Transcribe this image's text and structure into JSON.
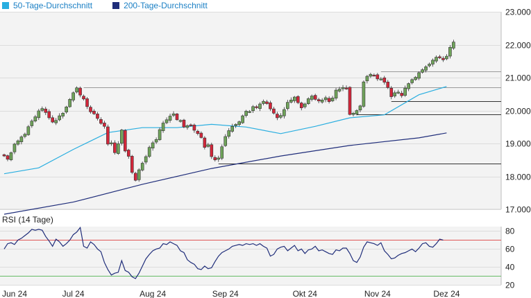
{
  "chart_data": [
    {
      "type": "candlestick",
      "title": "",
      "legend": {
        "placement": "top-left",
        "entries": [
          {
            "name": "50-Tage-Durchschnitt",
            "color": "#29aee0"
          },
          {
            "name": "200-Tage-Durchschnitt",
            "color": "#1f2d7a"
          }
        ]
      },
      "y_axis": {
        "side": "right",
        "ylim": [
          17000,
          23000
        ],
        "ticks": [
          17000,
          18000,
          19000,
          20000,
          21000,
          22000,
          23000
        ],
        "tick_labels": [
          "17.000",
          "18.000",
          "19.000",
          "20.000",
          "21.000",
          "22.000",
          "23.000"
        ]
      },
      "x_axis": {
        "labels": [
          "Jun 24",
          "Jul 24",
          "Aug 24",
          "Sep 24",
          "Okt 24",
          "Nov 24",
          "Dez 24"
        ],
        "label_index": [
          0,
          20,
          43,
          64,
          87,
          108,
          128
        ]
      },
      "grid": "horizontal",
      "colors": {
        "up": "#6fa35a",
        "down": "#d3263a",
        "grid": "#dcdcdc",
        "plot_bg": "#f3f3f3"
      },
      "close": [
        18620,
        18520,
        18720,
        18980,
        19080,
        19200,
        19280,
        19510,
        19680,
        19810,
        19990,
        20060,
        19940,
        19780,
        19650,
        19700,
        19840,
        19920,
        20110,
        20340,
        20540,
        20690,
        20470,
        20350,
        20120,
        19960,
        19900,
        19760,
        19610,
        19520,
        18980,
        19020,
        18720,
        18990,
        19410,
        18770,
        18610,
        18120,
        17880,
        18200,
        18400,
        18600,
        18880,
        19020,
        19120,
        19420,
        19620,
        19720,
        19830,
        19900,
        19720,
        19700,
        19500,
        19540,
        19560,
        19400,
        19300,
        19180,
        18880,
        18960,
        18600,
        18500,
        18560,
        18900,
        19210,
        19390,
        19520,
        19580,
        19660,
        19840,
        19980,
        19970,
        20120,
        20090,
        20200,
        20280,
        20210,
        20050,
        19920,
        19780,
        19850,
        20030,
        20250,
        20320,
        20410,
        20240,
        20080,
        20200,
        20360,
        20440,
        20340,
        20290,
        20320,
        20390,
        20270,
        20380,
        20620,
        20650,
        20700,
        20680,
        19880,
        19920,
        20000,
        20140,
        20870,
        21040,
        21100,
        21070,
        20960,
        20960,
        20860,
        20700,
        20420,
        20540,
        20560,
        20450,
        20680,
        20820,
        20940,
        21010,
        21150,
        21240,
        21330,
        21410,
        21530,
        21620,
        21600,
        21540,
        21650,
        21920,
        22080
      ],
      "series": [
        {
          "name": "50-Tage-Durchschnitt",
          "x_index": [
            0,
            10,
            20,
            30,
            40,
            50,
            60,
            70,
            80,
            90,
            100,
            110,
            120,
            128
          ],
          "values": [
            18080,
            18260,
            18820,
            19330,
            19480,
            19480,
            19580,
            19500,
            19300,
            19520,
            19780,
            19870,
            20480,
            20730
          ]
        },
        {
          "name": "200-Tage-Durchschnitt",
          "x_index": [
            0,
            20,
            40,
            60,
            80,
            100,
            120,
            128
          ],
          "values": [
            16850,
            17220,
            17760,
            18240,
            18620,
            18940,
            19170,
            19320
          ]
        }
      ],
      "horizontal_lines": [
        {
          "value": 21190,
          "color": "#9a9a9a"
        },
        {
          "value": 20700,
          "color": "#9a9a9a"
        },
        {
          "value": 20290,
          "color": "#333333"
        },
        {
          "value": 19880,
          "color": "#333333"
        },
        {
          "value": 18390,
          "color": "#333333"
        }
      ]
    },
    {
      "type": "line",
      "title": "RSI (14 Tage)",
      "y_axis": {
        "side": "right",
        "ylim": [
          20,
          85
        ],
        "ticks": [
          20,
          40,
          60,
          80
        ],
        "tick_labels": [
          "20",
          "40",
          "60",
          "80"
        ]
      },
      "reference_lines": [
        {
          "value": 70,
          "color": "#e05555"
        },
        {
          "value": 30,
          "color": "#66bb66"
        }
      ],
      "series": [
        {
          "name": "RSI",
          "color": "#1f2d7a",
          "values": [
            60,
            66,
            67,
            65,
            70,
            72,
            75,
            78,
            82,
            81,
            82,
            81,
            74,
            69,
            63,
            71,
            68,
            63,
            66,
            70,
            76,
            79,
            84,
            63,
            61,
            68,
            65,
            60,
            57,
            45,
            37,
            31,
            33,
            34,
            47,
            36,
            34,
            29,
            27,
            33,
            41,
            49,
            54,
            58,
            60,
            61,
            66,
            65,
            68,
            66,
            64,
            58,
            56,
            48,
            45,
            43,
            38,
            37,
            41,
            38,
            39,
            46,
            52,
            56,
            58,
            60,
            63,
            64,
            65,
            64,
            66,
            65,
            66,
            64,
            66,
            63,
            61,
            52,
            54,
            60,
            62,
            63,
            58,
            61,
            64,
            58,
            60,
            55,
            59,
            60,
            63,
            58,
            59,
            57,
            55,
            54,
            59,
            58,
            61,
            61,
            55,
            47,
            45,
            51,
            62,
            68,
            67,
            66,
            64,
            67,
            58,
            54,
            49,
            50,
            53,
            55,
            56,
            58,
            60,
            57,
            61,
            66,
            67,
            63,
            62,
            66,
            71,
            70
          ]
        }
      ]
    }
  ]
}
